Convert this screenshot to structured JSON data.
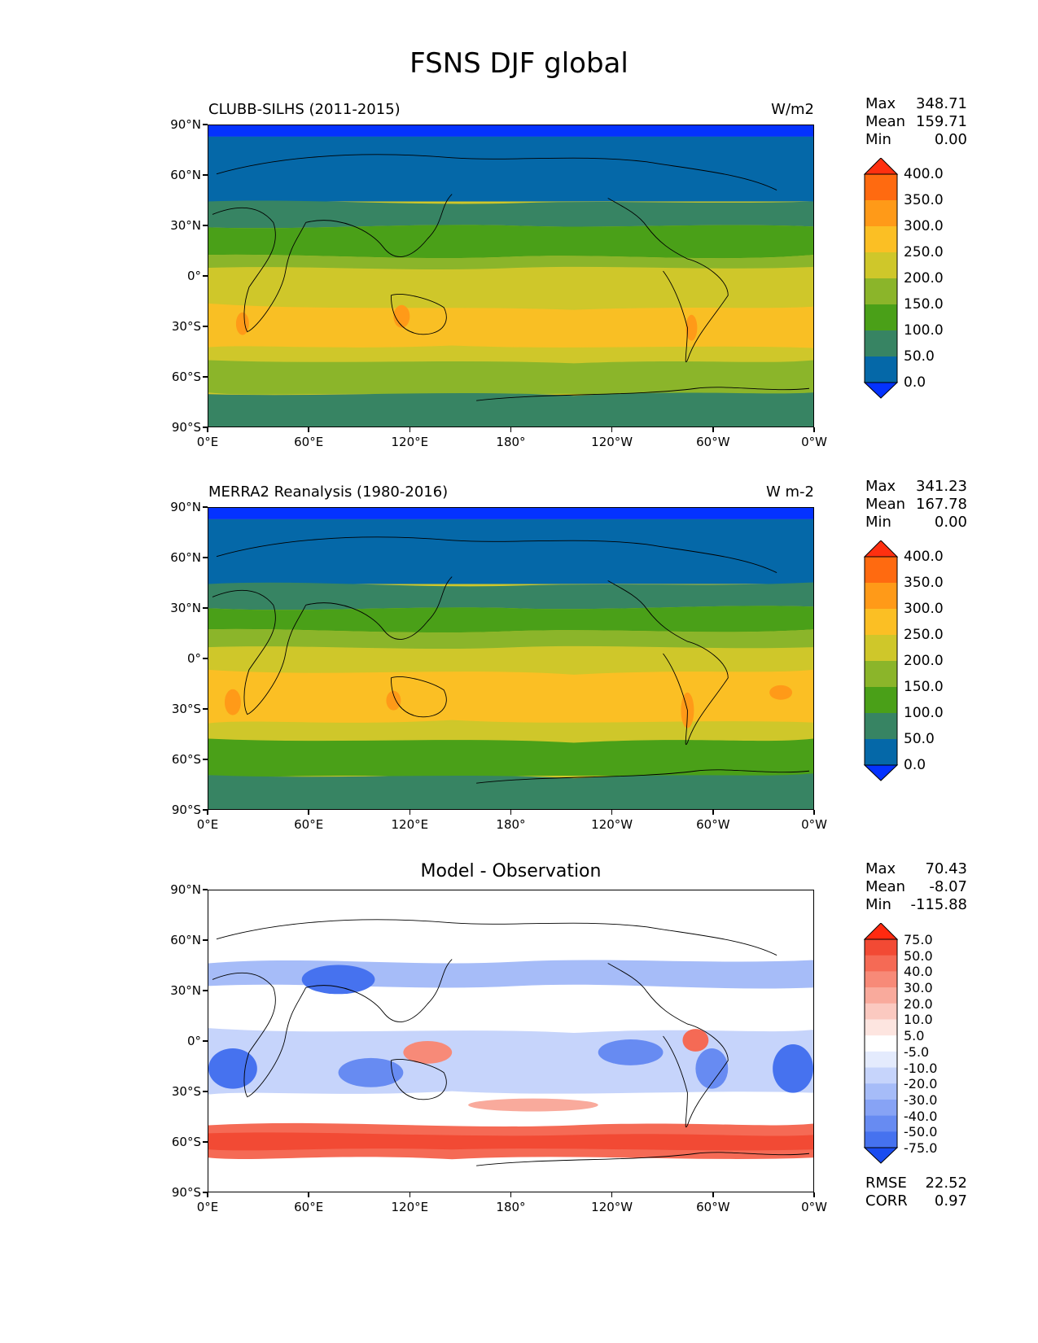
{
  "title": "FSNS DJF global",
  "axes": {
    "y_ticks": [
      "90°N",
      "60°N",
      "30°N",
      "0°",
      "30°S",
      "60°S",
      "90°S"
    ],
    "x_ticks": [
      "0°E",
      "60°E",
      "120°E",
      "180°",
      "120°W",
      "60°W",
      "0°W"
    ]
  },
  "panels": [
    {
      "title": "CLUBB-SILHS (2011-2015)",
      "units": "W/m2",
      "stats": {
        "max_label": "Max",
        "max": "348.71",
        "mean_label": "Mean",
        "mean": "159.71",
        "min_label": "Min",
        "min": "0.00"
      },
      "colorbar": {
        "labels": [
          "400.0",
          "350.0",
          "300.0",
          "250.0",
          "200.0",
          "150.0",
          "100.0",
          "50.0",
          "0.0"
        ],
        "colors": [
          "#ff3010",
          "#ff6a10",
          "#ff9a18",
          "#fbbf24",
          "#cfc72a",
          "#8bb52a",
          "#4aa018",
          "#378463",
          "#0568a8",
          "#0432ff"
        ]
      }
    },
    {
      "title": "MERRA2 Reanalysis (1980-2016)",
      "units": "W m-2",
      "stats": {
        "max_label": "Max",
        "max": "341.23",
        "mean_label": "Mean",
        "mean": "167.78",
        "min_label": "Min",
        "min": "0.00"
      },
      "colorbar": {
        "labels": [
          "400.0",
          "350.0",
          "300.0",
          "250.0",
          "200.0",
          "150.0",
          "100.0",
          "50.0",
          "0.0"
        ],
        "colors": [
          "#ff3010",
          "#ff6a10",
          "#ff9a18",
          "#fbbf24",
          "#cfc72a",
          "#8bb52a",
          "#4aa018",
          "#378463",
          "#0568a8",
          "#0432ff"
        ]
      }
    },
    {
      "title": "Model - Observation",
      "stats": {
        "max_label": "Max",
        "max": "70.43",
        "mean_label": "Mean",
        "mean": "-8.07",
        "min_label": "Min",
        "min": "-115.88"
      },
      "colorbar": {
        "labels": [
          "75.0",
          "50.0",
          "40.0",
          "30.0",
          "20.0",
          "10.0",
          "5.0",
          "-5.0",
          "-10.0",
          "-20.0",
          "-30.0",
          "-40.0",
          "-50.0",
          "-75.0"
        ],
        "colors": [
          "#ff2a10",
          "#f24a34",
          "#f56a55",
          "#f78a78",
          "#f9aa9c",
          "#fbc9c0",
          "#fde5e0",
          "#ffffff",
          "#e4ebfd",
          "#c6d4fb",
          "#a6bcf8",
          "#87a3f5",
          "#678bf2",
          "#4672ef",
          "#1a4cf0"
        ]
      },
      "rmse_label": "RMSE",
      "rmse": "22.52",
      "corr_label": "CORR",
      "corr": "0.97"
    }
  ]
}
